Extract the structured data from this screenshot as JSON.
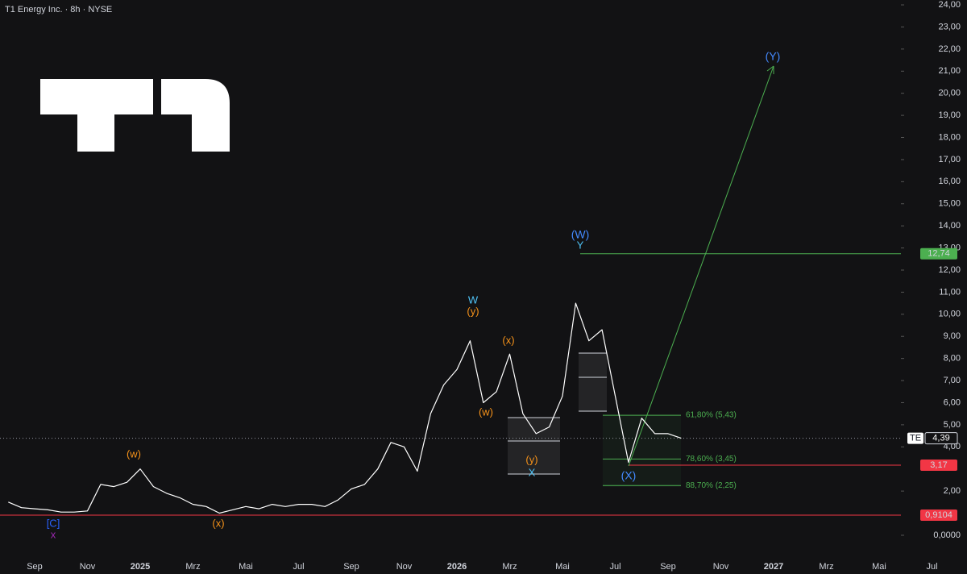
{
  "chart_data": {
    "type": "line",
    "title": "T1 Energy Inc. · 8h · NYSE",
    "categories": [
      null,
      null,
      "Sep",
      null,
      null,
      null,
      "Nov",
      null,
      null,
      null,
      "2025",
      null,
      null,
      null,
      "Mrz",
      null,
      null,
      null,
      "Mai",
      null,
      null,
      null,
      "Jul",
      null,
      null,
      null,
      "Sep",
      null,
      null,
      null,
      "Nov",
      null,
      null,
      null,
      "2026",
      null,
      null,
      null,
      "Mrz",
      null,
      null,
      null,
      "Mai",
      null,
      null,
      null,
      "Jul",
      null,
      null,
      null,
      "Sep",
      null,
      null,
      null,
      "Nov",
      null,
      null,
      null,
      "2027",
      null,
      null,
      null,
      "Mrz",
      null,
      null,
      null,
      "Mai",
      null,
      null,
      null,
      "Jul"
    ],
    "series": [
      {
        "name": "TE",
        "color": "#ffffff",
        "values": [
          1.5,
          1.25,
          1.2,
          1.15,
          1.05,
          1.05,
          1.1,
          2.3,
          2.2,
          2.4,
          3.0,
          2.2,
          1.9,
          1.7,
          1.4,
          1.3,
          1.0,
          1.15,
          1.3,
          1.2,
          1.4,
          1.3,
          1.4,
          1.4,
          1.3,
          1.6,
          2.1,
          2.3,
          3.0,
          4.2,
          4.0,
          2.9,
          5.5,
          6.8,
          7.5,
          8.8,
          6.0,
          6.5,
          8.2,
          5.5,
          4.6,
          4.9,
          6.3,
          10.5,
          8.8,
          9.3,
          6.3,
          3.3,
          5.3,
          4.6,
          4.6,
          4.39,
          null,
          null,
          null,
          null,
          null,
          null,
          null,
          null,
          null,
          null,
          null,
          null,
          null,
          null,
          null,
          null,
          null,
          null,
          null
        ]
      }
    ],
    "ylim": [
      -0.95,
      24.22
    ],
    "yticks": [
      {
        "value": 24,
        "label": "24,00"
      },
      {
        "value": 23,
        "label": "23,00"
      },
      {
        "value": 22,
        "label": "22,00"
      },
      {
        "value": 21,
        "label": "21,00"
      },
      {
        "value": 20,
        "label": "20,00"
      },
      {
        "value": 19,
        "label": "19,00"
      },
      {
        "value": 18,
        "label": "18,00"
      },
      {
        "value": 17,
        "label": "17,00"
      },
      {
        "value": 16,
        "label": "16,00"
      },
      {
        "value": 15,
        "label": "15,00"
      },
      {
        "value": 14,
        "label": "14,00"
      },
      {
        "value": 13,
        "label": "13,00"
      },
      {
        "value": 12,
        "label": "12,00"
      },
      {
        "value": 11,
        "label": "11,00"
      },
      {
        "value": 10,
        "label": "10,00"
      },
      {
        "value": 9,
        "label": "9,00"
      },
      {
        "value": 8,
        "label": "8,00"
      },
      {
        "value": 7,
        "label": "7,00"
      },
      {
        "value": 6,
        "label": "6,00"
      },
      {
        "value": 5,
        "label": "5,00"
      },
      {
        "value": 4,
        "label": "4,00"
      },
      {
        "value": 2,
        "label": "2,00"
      },
      {
        "value": 0,
        "label": "0,0000"
      }
    ],
    "grid": false,
    "last_price": {
      "symbol": "TE",
      "value": 4.39,
      "label": "4,39"
    },
    "price_levels": [
      {
        "value": 12.74,
        "label": "12,74",
        "color": "#4caf50"
      },
      {
        "value": 3.17,
        "label": "3,17",
        "color": "#f23645"
      },
      {
        "value": 0.9104,
        "label": "0,9104",
        "color": "#f23645"
      }
    ],
    "fib_levels": [
      {
        "value": 5.43,
        "label": "61,80% (5,43)"
      },
      {
        "value": 3.45,
        "label": "78,60% (3,45)"
      },
      {
        "value": 2.25,
        "label": "88,70% (2,25)"
      }
    ],
    "wave_labels": [
      "[C]",
      "x",
      "(w)",
      "(x)",
      "W",
      "(y)",
      "(x)",
      "(w)",
      "(y)",
      "X",
      "(W)",
      "Y",
      "(X)",
      "(Y)"
    ]
  }
}
